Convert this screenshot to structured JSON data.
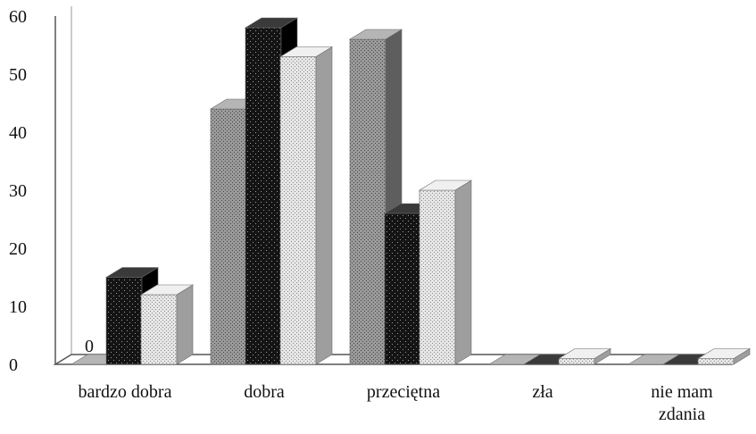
{
  "chart_data": {
    "type": "bar",
    "style": "3d-clustered",
    "title": "",
    "xlabel": "",
    "ylabel": "",
    "ylim": [
      0,
      60
    ],
    "yticks": [
      0,
      10,
      20,
      30,
      40,
      50,
      60
    ],
    "grid": false,
    "legend": "none",
    "categories": [
      [
        "bardzo dobra"
      ],
      [
        "dobra"
      ],
      [
        "przeciętna"
      ],
      [
        "zła"
      ],
      [
        "nie mam",
        "zdania"
      ]
    ],
    "series": [
      {
        "values": [
          0,
          44,
          56,
          0,
          0
        ],
        "color": "#8c8c8c",
        "pattern": "dots-grey"
      },
      {
        "values": [
          15,
          58,
          26,
          0,
          0
        ],
        "color": "#1a1a1a",
        "pattern": "dots-dark"
      },
      {
        "values": [
          12,
          53,
          30,
          1,
          1
        ],
        "color": "#d9d9d9",
        "pattern": "dots-light"
      }
    ],
    "data_labels": [
      {
        "series": 0,
        "category": 0,
        "text": "0"
      }
    ]
  }
}
